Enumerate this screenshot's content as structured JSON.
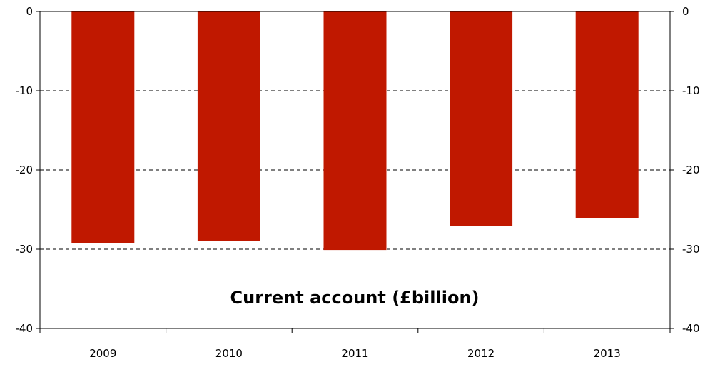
{
  "chart_data": {
    "type": "bar",
    "title": "Current account (£billion)",
    "categories": [
      "2009",
      "2010",
      "2011",
      "2012",
      "2013"
    ],
    "values": [
      -29.2,
      -29.0,
      -30.1,
      -27.1,
      -26.1
    ],
    "ylim": [
      -40,
      0
    ],
    "yticks": [
      0,
      -10,
      -20,
      -30,
      -40
    ],
    "ytick_labels": [
      "0",
      "-10",
      "-20",
      "-30",
      "-40"
    ],
    "grid": true,
    "bar_color": "#c01800",
    "axis_color": "#000000",
    "grid_color": "#000000"
  }
}
